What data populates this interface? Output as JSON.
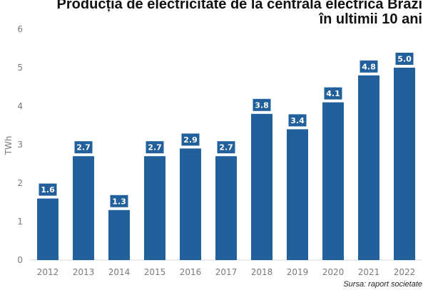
{
  "chart_data": {
    "type": "bar",
    "title": [
      "Producția de electricitate de la centrala electrică Brazi",
      "în ultimii 10 ani"
    ],
    "ylabel": "TWh",
    "xlabel": "",
    "categories": [
      "2012",
      "2013",
      "2014",
      "2015",
      "2016",
      "2017",
      "2018",
      "2019",
      "2020",
      "2021",
      "2022"
    ],
    "values": [
      1.6,
      2.7,
      1.3,
      2.7,
      2.9,
      2.7,
      3.8,
      3.4,
      4.1,
      4.8,
      5.0
    ],
    "data_labels": [
      "1.6",
      "2.7",
      "1.3",
      "2.7",
      "2.9",
      "2.7",
      "3.8",
      "3.4",
      "4.1",
      "4.8",
      "5.0"
    ],
    "ylim": [
      0,
      6
    ],
    "yticks": [
      "0",
      "1",
      "2",
      "3",
      "4",
      "5",
      "6"
    ],
    "grid": false,
    "bar_color": "#21609a",
    "label_box_color": "#21609a",
    "source": "Sursa: raport societate"
  }
}
